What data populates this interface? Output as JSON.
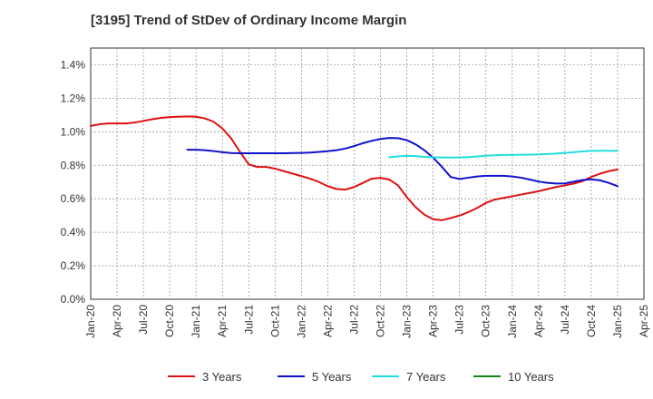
{
  "chart_data": {
    "type": "line",
    "title": "[3195]  Trend of StDev of Ordinary Income Margin",
    "xlabel": "",
    "ylabel": "",
    "x_ticks": [
      "Jan-20",
      "Apr-20",
      "Jul-20",
      "Oct-20",
      "Jan-21",
      "Apr-21",
      "Jul-21",
      "Oct-21",
      "Jan-22",
      "Apr-22",
      "Jul-22",
      "Oct-22",
      "Jan-23",
      "Apr-23",
      "Jul-23",
      "Oct-23",
      "Jan-24",
      "Apr-24",
      "Jul-24",
      "Oct-24",
      "Jan-25",
      "Apr-25"
    ],
    "y_ticks": [
      "0.0%",
      "0.2%",
      "0.4%",
      "0.6%",
      "0.8%",
      "1.0%",
      "1.2%",
      "1.4%"
    ],
    "ylim": [
      0,
      1.5
    ],
    "grid": true,
    "legend_position": "bottom",
    "series": [
      {
        "name": "3 Years",
        "color": "#dd1111",
        "points": [
          [
            "Jan-20",
            1.035
          ],
          [
            "Feb-20",
            1.045
          ],
          [
            "Mar-20",
            1.05
          ],
          [
            "Apr-20",
            1.05
          ],
          [
            "May-20",
            1.05
          ],
          [
            "Jun-20",
            1.055
          ],
          [
            "Jul-20",
            1.065
          ],
          [
            "Aug-20",
            1.075
          ],
          [
            "Sep-20",
            1.083
          ],
          [
            "Oct-20",
            1.088
          ],
          [
            "Nov-20",
            1.09
          ],
          [
            "Dec-20",
            1.092
          ],
          [
            "Jan-21",
            1.09
          ],
          [
            "Feb-21",
            1.08
          ],
          [
            "Mar-21",
            1.06
          ],
          [
            "Apr-21",
            1.02
          ],
          [
            "May-21",
            0.96
          ],
          [
            "Jun-21",
            0.88
          ],
          [
            "Jul-21",
            0.805
          ],
          [
            "Aug-21",
            0.79
          ],
          [
            "Sep-21",
            0.79
          ],
          [
            "Oct-21",
            0.78
          ],
          [
            "Nov-21",
            0.765
          ],
          [
            "Dec-21",
            0.75
          ],
          [
            "Jan-22",
            0.735
          ],
          [
            "Feb-22",
            0.72
          ],
          [
            "Mar-22",
            0.7
          ],
          [
            "Apr-22",
            0.675
          ],
          [
            "May-22",
            0.658
          ],
          [
            "Jun-22",
            0.655
          ],
          [
            "Jul-22",
            0.67
          ],
          [
            "Aug-22",
            0.695
          ],
          [
            "Sep-22",
            0.72
          ],
          [
            "Oct-22",
            0.725
          ],
          [
            "Nov-22",
            0.715
          ],
          [
            "Dec-22",
            0.68
          ],
          [
            "Jan-23",
            0.61
          ],
          [
            "Feb-23",
            0.55
          ],
          [
            "Mar-23",
            0.505
          ],
          [
            "Apr-23",
            0.478
          ],
          [
            "May-23",
            0.472
          ],
          [
            "Jun-23",
            0.485
          ],
          [
            "Jul-23",
            0.5
          ],
          [
            "Aug-23",
            0.52
          ],
          [
            "Sep-23",
            0.545
          ],
          [
            "Oct-23",
            0.575
          ],
          [
            "Nov-23",
            0.595
          ],
          [
            "Dec-23",
            0.605
          ],
          [
            "Jan-24",
            0.615
          ],
          [
            "Feb-24",
            0.625
          ],
          [
            "Mar-24",
            0.635
          ],
          [
            "Apr-24",
            0.645
          ],
          [
            "May-24",
            0.658
          ],
          [
            "Jun-24",
            0.67
          ],
          [
            "Jul-24",
            0.68
          ],
          [
            "Aug-24",
            0.69
          ],
          [
            "Sep-24",
            0.705
          ],
          [
            "Oct-24",
            0.73
          ],
          [
            "Nov-24",
            0.75
          ],
          [
            "Dec-24",
            0.765
          ],
          [
            "Jan-25",
            0.775
          ]
        ]
      },
      {
        "name": "5 Years",
        "color": "#1111cc",
        "points": [
          [
            "Dec-20",
            0.893
          ],
          [
            "Jan-21",
            0.893
          ],
          [
            "Feb-21",
            0.89
          ],
          [
            "Mar-21",
            0.885
          ],
          [
            "Apr-21",
            0.878
          ],
          [
            "May-21",
            0.873
          ],
          [
            "Jun-21",
            0.872
          ],
          [
            "Jul-21",
            0.872
          ],
          [
            "Aug-21",
            0.872
          ],
          [
            "Sep-21",
            0.872
          ],
          [
            "Oct-21",
            0.872
          ],
          [
            "Nov-21",
            0.872
          ],
          [
            "Dec-21",
            0.873
          ],
          [
            "Jan-22",
            0.874
          ],
          [
            "Feb-22",
            0.876
          ],
          [
            "Mar-22",
            0.88
          ],
          [
            "Apr-22",
            0.884
          ],
          [
            "May-22",
            0.89
          ],
          [
            "Jun-22",
            0.9
          ],
          [
            "Jul-22",
            0.915
          ],
          [
            "Aug-22",
            0.932
          ],
          [
            "Sep-22",
            0.946
          ],
          [
            "Oct-22",
            0.957
          ],
          [
            "Nov-22",
            0.963
          ],
          [
            "Dec-22",
            0.962
          ],
          [
            "Jan-23",
            0.95
          ],
          [
            "Feb-23",
            0.925
          ],
          [
            "Mar-23",
            0.89
          ],
          [
            "Apr-23",
            0.845
          ],
          [
            "May-23",
            0.79
          ],
          [
            "Jun-23",
            0.73
          ],
          [
            "Jul-23",
            0.718
          ],
          [
            "Aug-23",
            0.726
          ],
          [
            "Sep-23",
            0.733
          ],
          [
            "Oct-23",
            0.737
          ],
          [
            "Nov-23",
            0.737
          ],
          [
            "Dec-23",
            0.737
          ],
          [
            "Jan-24",
            0.733
          ],
          [
            "Feb-24",
            0.726
          ],
          [
            "Mar-24",
            0.715
          ],
          [
            "Apr-24",
            0.703
          ],
          [
            "May-24",
            0.695
          ],
          [
            "Jun-24",
            0.691
          ],
          [
            "Jul-24",
            0.692
          ],
          [
            "Aug-24",
            0.702
          ],
          [
            "Sep-24",
            0.712
          ],
          [
            "Oct-24",
            0.716
          ],
          [
            "Nov-24",
            0.71
          ],
          [
            "Dec-24",
            0.695
          ],
          [
            "Jan-25",
            0.675
          ]
        ]
      },
      {
        "name": "7 Years",
        "color": "#22dddd",
        "points": [
          [
            "Nov-22",
            0.848
          ],
          [
            "Dec-22",
            0.853
          ],
          [
            "Jan-23",
            0.857
          ],
          [
            "Feb-23",
            0.855
          ],
          [
            "Mar-23",
            0.85
          ],
          [
            "Apr-23",
            0.848
          ],
          [
            "May-23",
            0.847
          ],
          [
            "Jun-23",
            0.846
          ],
          [
            "Jul-23",
            0.847
          ],
          [
            "Aug-23",
            0.849
          ],
          [
            "Sep-23",
            0.853
          ],
          [
            "Oct-23",
            0.857
          ],
          [
            "Nov-23",
            0.86
          ],
          [
            "Dec-23",
            0.862
          ],
          [
            "Jan-24",
            0.862
          ],
          [
            "Feb-24",
            0.863
          ],
          [
            "Mar-24",
            0.864
          ],
          [
            "Apr-24",
            0.865
          ],
          [
            "May-24",
            0.867
          ],
          [
            "Jun-24",
            0.87
          ],
          [
            "Jul-24",
            0.874
          ],
          [
            "Aug-24",
            0.878
          ],
          [
            "Sep-24",
            0.883
          ],
          [
            "Oct-24",
            0.886
          ],
          [
            "Nov-24",
            0.887
          ],
          [
            "Dec-24",
            0.887
          ],
          [
            "Jan-25",
            0.886
          ]
        ]
      },
      {
        "name": "10 Years",
        "color": "#118811",
        "points": []
      }
    ]
  }
}
